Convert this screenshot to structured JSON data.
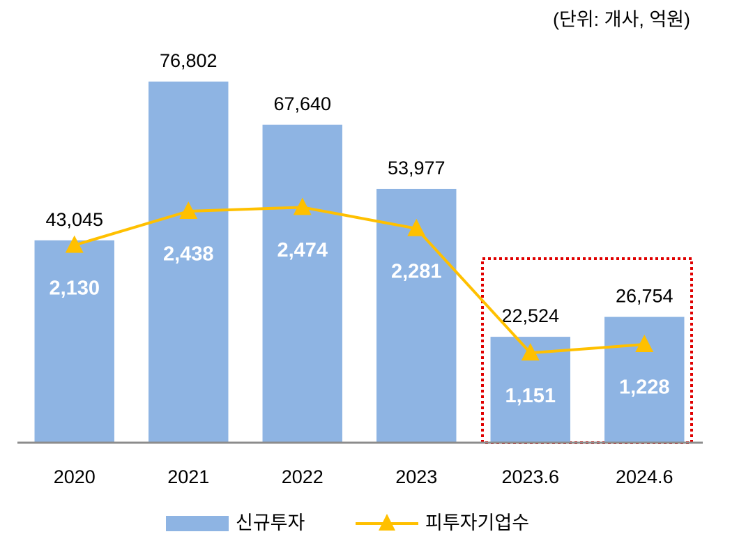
{
  "chart_data": {
    "type": "bar",
    "unit_label": "(단위: 개사, 억원)",
    "categories": [
      "2020",
      "2021",
      "2022",
      "2023",
      "2023.6",
      "2024.6"
    ],
    "series": [
      {
        "name": "신규투자",
        "type": "bar",
        "color": "#8eb4e3",
        "values": [
          43045,
          76802,
          67640,
          53977,
          22524,
          26754
        ],
        "value_labels": [
          "43,045",
          "76,802",
          "67,640",
          "53,977",
          "22,524",
          "26,754"
        ]
      },
      {
        "name": "피투자기업수",
        "type": "line",
        "axis": "y2",
        "color": "#ffc000",
        "values": [
          2130,
          2438,
          2474,
          2281,
          1151,
          1228
        ],
        "value_labels": [
          "2,130",
          "2,438",
          "2,474",
          "2,281",
          "1,151",
          "1,228"
        ]
      }
    ],
    "ylim": [
      0,
      90000
    ],
    "y2lim": [
      335,
      4180
    ]
  }
}
